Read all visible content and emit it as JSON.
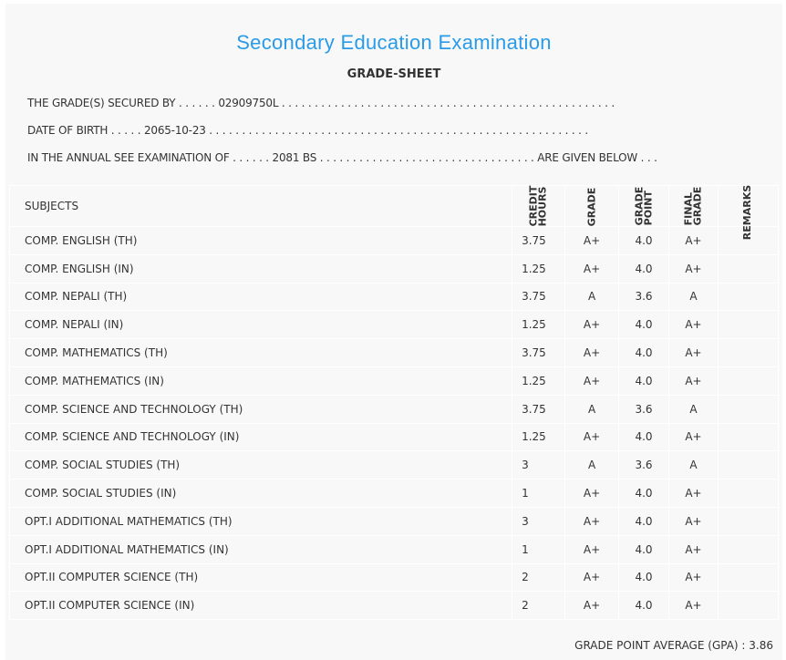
{
  "title": "Secondary Education Examination",
  "subtitle": "GRADE-SHEET",
  "info": {
    "secured_by": "THE GRADE(S) SECURED BY . . . . . . 02909750L . . . . . . . . . . . . . . . . . . . . . . . . . . . . . . . . . . . . . . . . . . . . . . . . . . .",
    "dob": "DATE OF BIRTH . . . . . 2065-10-23 . . . . . . . . . . . . . . . . . . . . . . . . . . . . . . . . . . . . . . . . . . . . . . . . . . . . . . . . . .",
    "exam": "IN THE ANNUAL SEE EXAMINATION OF . . . . . . 2081 BS . . . . . . . . . . . . . . . . . . . . . . . . . . . . . . . . . ARE GIVEN BELOW . . ."
  },
  "headers": {
    "subjects": "SUBJECTS",
    "credit": "CREDIT\nHOURS",
    "grade": "GRADE",
    "point": "GRADE\nPOINT",
    "final": "FINAL\nGRADE",
    "remarks": "REMARKS"
  },
  "rows": [
    [
      "COMP. ENGLISH (TH)",
      "3.75",
      "A+",
      "4.0",
      "A+"
    ],
    [
      "COMP. ENGLISH (IN)",
      "1.25",
      "A+",
      "4.0",
      "A+"
    ],
    [
      "COMP. NEPALI (TH)",
      "3.75",
      "A",
      "3.6",
      "A"
    ],
    [
      "COMP. NEPALI (IN)",
      "1.25",
      "A+",
      "4.0",
      "A+"
    ],
    [
      "COMP. MATHEMATICS (TH)",
      "3.75",
      "A+",
      "4.0",
      "A+"
    ],
    [
      "COMP. MATHEMATICS (IN)",
      "1.25",
      "A+",
      "4.0",
      "A+"
    ],
    [
      "COMP. SCIENCE AND TECHNOLOGY (TH)",
      "3.75",
      "A",
      "3.6",
      "A"
    ],
    [
      "COMP. SCIENCE AND TECHNOLOGY (IN)",
      "1.25",
      "A+",
      "4.0",
      "A+"
    ],
    [
      "COMP. SOCIAL STUDIES (TH)",
      "3",
      "A",
      "3.6",
      "A"
    ],
    [
      "COMP. SOCIAL STUDIES (IN)",
      "1",
      "A+",
      "4.0",
      "A+"
    ],
    [
      "OPT.I ADDITIONAL MATHEMATICS (TH)",
      "3",
      "A+",
      "4.0",
      "A+"
    ],
    [
      "OPT.I ADDITIONAL MATHEMATICS (IN)",
      "1",
      "A+",
      "4.0",
      "A+"
    ],
    [
      "OPT.II COMPUTER SCIENCE (TH)",
      "2",
      "A+",
      "4.0",
      "A+"
    ],
    [
      "OPT.II COMPUTER SCIENCE (IN)",
      "2",
      "A+",
      "4.0",
      "A+"
    ]
  ],
  "gpa": "GRADE POINT AVERAGE (GPA) : 3.86"
}
